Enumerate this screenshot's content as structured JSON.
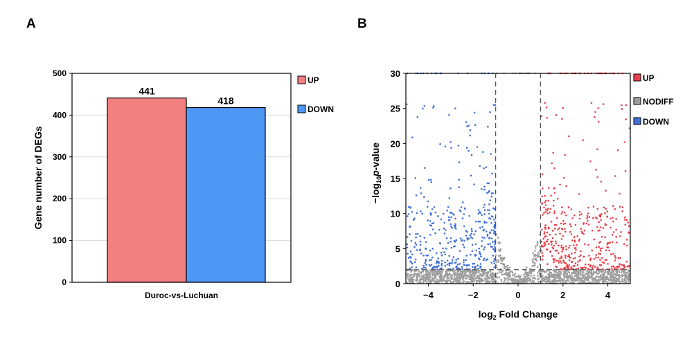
{
  "panels": {
    "a_label": "A",
    "b_label": "B"
  },
  "colors": {
    "up": "#f28080",
    "down": "#4f97f5",
    "nodiff": "#9e9e9e",
    "volcano_up": "#e8404a",
    "volcano_down": "#3f6fd6"
  },
  "chart_data": [
    {
      "type": "bar",
      "categories": [
        "Duroc-vs-Luchuan"
      ],
      "series": [
        {
          "name": "UP",
          "values": [
            441
          ]
        },
        {
          "name": "DOWN",
          "values": [
            418
          ]
        }
      ],
      "data_labels": [
        "441",
        "418"
      ],
      "title": "",
      "xlabel": "",
      "ylabel": "Gene number of DEGs",
      "ylim": [
        0,
        500
      ],
      "yticks": [
        0,
        100,
        200,
        300,
        400,
        500
      ],
      "grid": true,
      "legend": {
        "placement": "right",
        "entries": [
          "UP",
          "DOWN"
        ]
      }
    },
    {
      "type": "scatter",
      "title": "",
      "xlabel_main": "log",
      "xlabel_sub": "2",
      "xlabel_rest": " Fold Change",
      "ylabel_pre": "−log",
      "ylabel_sub": "10",
      "ylabel_p": "p",
      "ylabel_rest": "-value",
      "xlim": [
        -5,
        5
      ],
      "ylim": [
        0,
        30
      ],
      "xticks": [
        -4,
        -2,
        0,
        2,
        4
      ],
      "xtick_labels": [
        "−4",
        "−2",
        "0",
        "2",
        "4"
      ],
      "yticks": [
        0,
        5,
        10,
        15,
        20,
        25,
        30
      ],
      "thresholds": {
        "log2fc": [
          -1,
          1
        ],
        "neg_log10_p": 2
      },
      "grid": false,
      "legend": {
        "placement": "right",
        "entries": [
          "UP",
          "NODIFF",
          "DOWN"
        ]
      },
      "series": [
        {
          "name": "UP",
          "count": 441
        },
        {
          "name": "NODIFF",
          "count": 1600
        },
        {
          "name": "DOWN",
          "count": 418
        }
      ]
    }
  ]
}
